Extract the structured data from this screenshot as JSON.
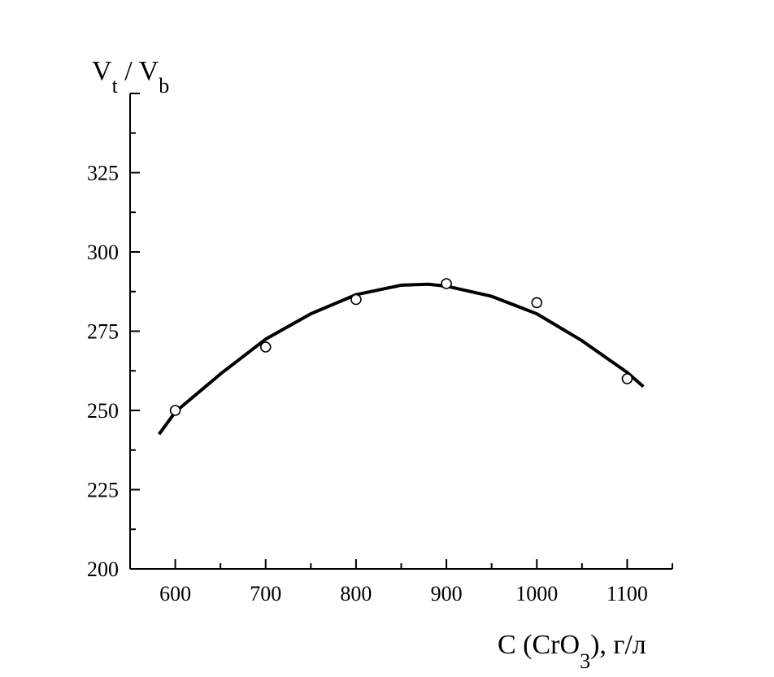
{
  "chart_data": {
    "type": "scatter",
    "title": "",
    "ylabel": {
      "main1": "V",
      "sub1": "t",
      "sep": " / V",
      "sub2": "b"
    },
    "xlabel": {
      "main": "C (CrO",
      "sub": "3",
      "tail": "), г/л"
    },
    "xlim": [
      550,
      1150
    ],
    "ylim": [
      200,
      350
    ],
    "xticks": [
      600,
      700,
      800,
      900,
      1000,
      1100
    ],
    "yticks": [
      200,
      225,
      250,
      275,
      300,
      325
    ],
    "grid": false,
    "series": [
      {
        "type": "scatter",
        "marker": "open-circle",
        "x": [
          600,
          700,
          800,
          900,
          1000,
          1100
        ],
        "y": [
          250,
          270,
          285,
          290,
          284,
          260
        ]
      },
      {
        "type": "line",
        "style": "fitted-curve",
        "x": [
          582,
          600,
          650,
          700,
          750,
          800,
          850,
          880,
          900,
          950,
          1000,
          1050,
          1100,
          1118
        ],
        "y": [
          242.5,
          249.5,
          261.5,
          272.5,
          280.5,
          286.5,
          289.5,
          289.8,
          289.2,
          286.0,
          280.5,
          272.0,
          262.0,
          257.5
        ]
      }
    ]
  }
}
